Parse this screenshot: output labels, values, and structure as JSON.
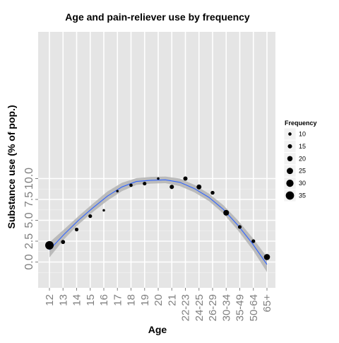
{
  "chart_data": {
    "type": "scatter",
    "title": "Age and pain-reliever use by frequency",
    "xlabel": "Age",
    "ylabel": "Substance use (% of pop.)",
    "categories": [
      "12",
      "13",
      "14",
      "15",
      "16",
      "17",
      "18",
      "19",
      "20",
      "21",
      "22-23",
      "24-25",
      "26-29",
      "30-34",
      "35-49",
      "50-64",
      "65+"
    ],
    "y_ticks": [
      "0.0",
      "2.5",
      "5.0",
      "7.5",
      "10.0"
    ],
    "ylim": [
      -0.6,
      10.6
    ],
    "grid": true,
    "legend": {
      "title": "Frequency",
      "position": "right",
      "entries": [
        {
          "label": "10",
          "value": 10
        },
        {
          "label": "15",
          "value": 15
        },
        {
          "label": "20",
          "value": 20
        },
        {
          "label": "25",
          "value": 25
        },
        {
          "label": "30",
          "value": 30
        },
        {
          "label": "35",
          "value": 35
        }
      ]
    },
    "points": [
      {
        "x": "12",
        "y": 2.0,
        "frequency": 36
      },
      {
        "x": "13",
        "y": 2.4,
        "frequency": 14
      },
      {
        "x": "14",
        "y": 3.9,
        "frequency": 12
      },
      {
        "x": "15",
        "y": 5.5,
        "frequency": 12
      },
      {
        "x": "16",
        "y": 6.2,
        "frequency": 6
      },
      {
        "x": "17",
        "y": 8.5,
        "frequency": 6
      },
      {
        "x": "18",
        "y": 9.2,
        "frequency": 10
      },
      {
        "x": "19",
        "y": 9.4,
        "frequency": 12
      },
      {
        "x": "20",
        "y": 10.0,
        "frequency": 6
      },
      {
        "x": "21",
        "y": 9.0,
        "frequency": 15
      },
      {
        "x": "22-23",
        "y": 10.0,
        "frequency": 15
      },
      {
        "x": "24-25",
        "y": 9.0,
        "frequency": 18
      },
      {
        "x": "26-29",
        "y": 8.3,
        "frequency": 13
      },
      {
        "x": "30-34",
        "y": 5.9,
        "frequency": 22
      },
      {
        "x": "35-49",
        "y": 4.2,
        "frequency": 12
      },
      {
        "x": "50-64",
        "y": 2.5,
        "frequency": 12
      },
      {
        "x": "65+",
        "y": 0.6,
        "frequency": 24
      }
    ],
    "smooth": {
      "fit": [
        1.45,
        3.3,
        5.0,
        6.5,
        7.9,
        9.0,
        9.65,
        9.8,
        9.85,
        9.55,
        8.8,
        7.75,
        6.3,
        4.4,
        2.2,
        -0.3
      ],
      "lower": [
        0.55,
        2.7,
        4.5,
        6.0,
        7.35,
        8.5,
        9.25,
        9.4,
        9.45,
        9.1,
        8.35,
        7.3,
        5.8,
        3.8,
        1.5,
        -1.2
      ],
      "upper": [
        2.35,
        3.9,
        5.5,
        7.0,
        8.45,
        9.5,
        10.05,
        10.2,
        10.25,
        10.0,
        9.25,
        8.2,
        6.8,
        5.0,
        2.9,
        0.6
      ]
    },
    "colors": {
      "panel": "#e5e5e5",
      "grid_major": "#ffffff",
      "grid_minor": "#f2f2f2",
      "smooth_line": "#3366ff",
      "ribbon": "#b3b3b3",
      "point": "#000000",
      "tick_text": "#7f7f7f",
      "text": "#000000"
    }
  }
}
